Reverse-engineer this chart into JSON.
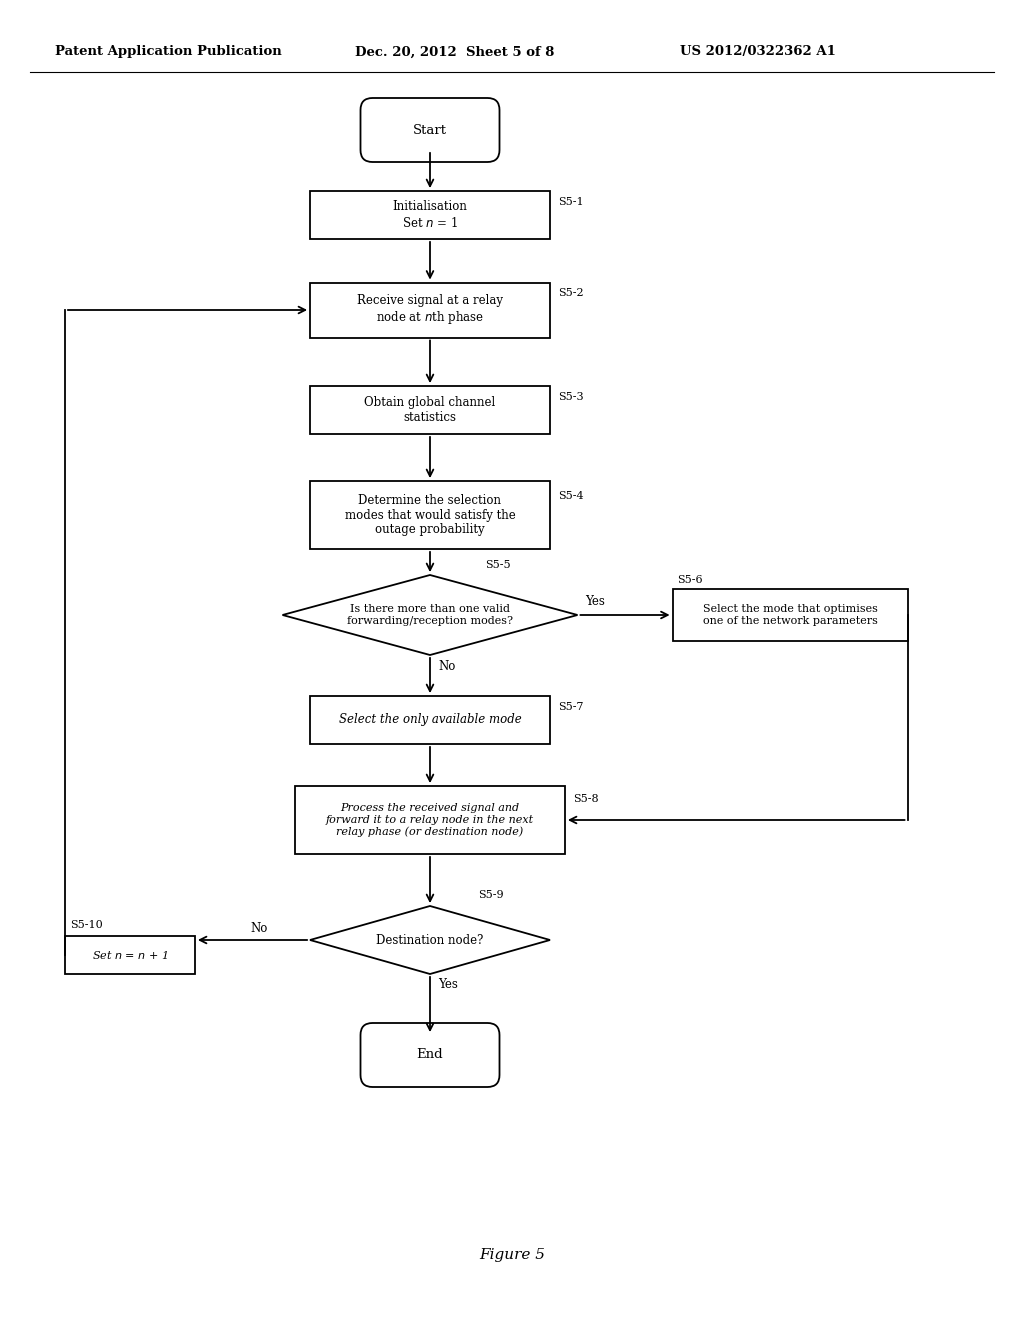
{
  "title_left": "Patent Application Publication",
  "title_mid": "Dec. 20, 2012  Sheet 5 of 8",
  "title_right": "US 2012/0322362 A1",
  "figure_label": "Figure 5",
  "bg_color": "#ffffff",
  "line_color": "#000000",
  "header_fontsize": 9.5,
  "body_fontsize": 8.5,
  "small_fontsize": 8.0,
  "fig_label_fontsize": 11
}
